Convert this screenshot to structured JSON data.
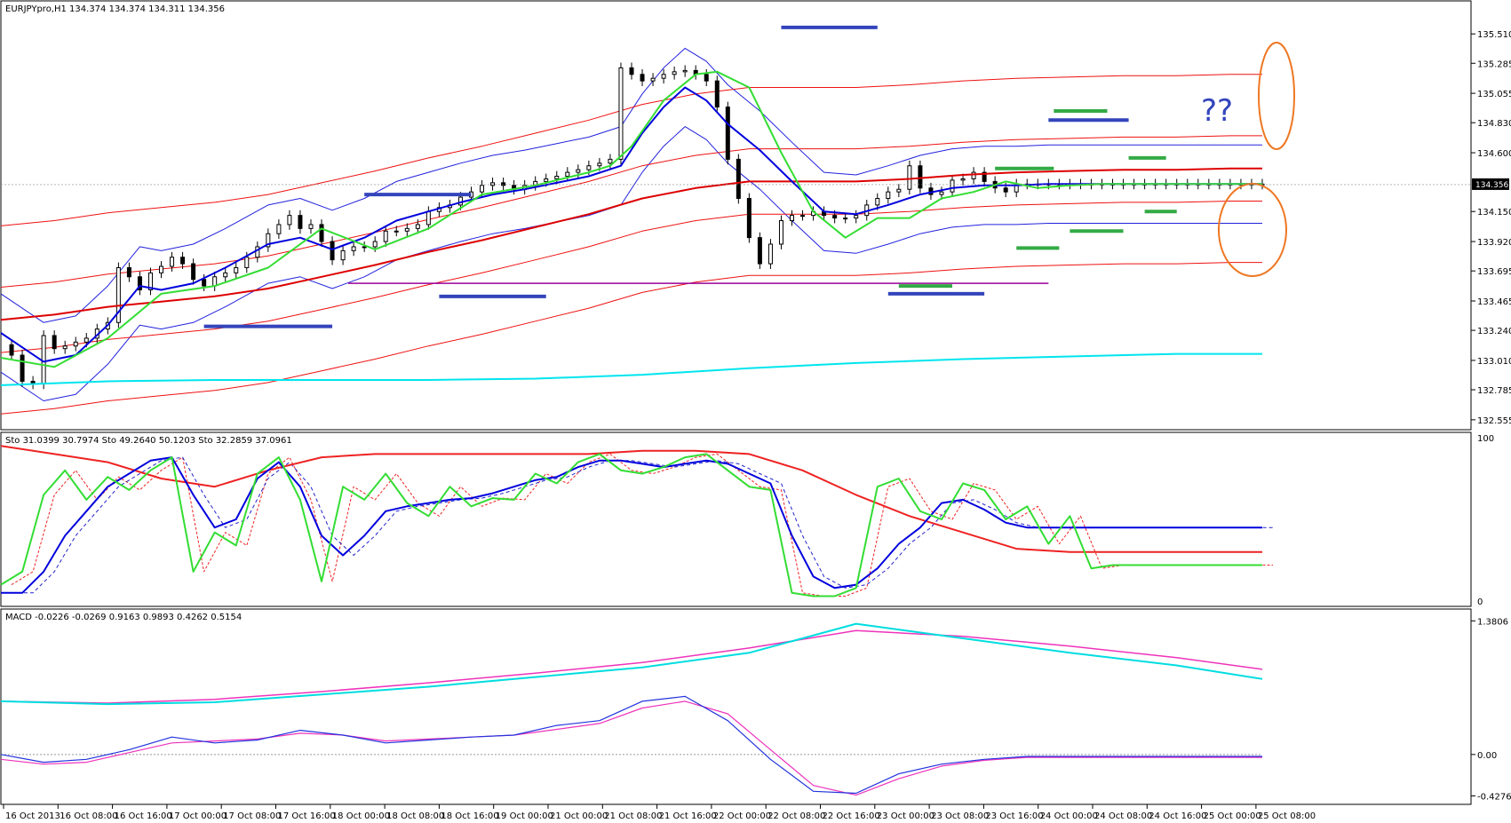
{
  "main": {
    "title": "EURJPYpro,H1  134.374 134.374 134.311 134.356",
    "price_ticks": [
      "135.510",
      "135.285",
      "135.055",
      "134.830",
      "134.600",
      "134.150",
      "133.920",
      "133.695",
      "133.465",
      "133.240",
      "133.010",
      "132.785",
      "132.555"
    ],
    "price_range": [
      132.52,
      135.62
    ],
    "current_price": "134.356",
    "question_marks": "??"
  },
  "stochastic": {
    "title": "Sto 31.0399 30.7974   Sto 49.2640 50.1203   Sto 32.2859 37.0961",
    "ticks": [
      "100",
      "0"
    ],
    "range": [
      0,
      100
    ]
  },
  "macd": {
    "title": "MACD -0.0226 -0.0269 0.9163 0.9893 0.4262 0.5154",
    "ticks": [
      "1.3806",
      "0.00",
      "-0.4276"
    ],
    "range": [
      -0.46,
      1.42
    ]
  },
  "x_ticks": [
    "16 Oct 2013",
    "16 Oct 08:00",
    "16 Oct 16:00",
    "17 Oct 00:00",
    "17 Oct 08:00",
    "17 Oct 16:00",
    "18 Oct 00:00",
    "18 Oct 08:00",
    "18 Oct 16:00",
    "19 Oct 00:00",
    "21 Oct 00:00",
    "21 Oct 08:00",
    "21 Oct 16:00",
    "22 Oct 00:00",
    "22 Oct 08:00",
    "22 Oct 16:00",
    "23 Oct 00:00",
    "23 Oct 08:00",
    "23 Oct 16:00",
    "24 Oct 00:00",
    "24 Oct 08:00",
    "24 Oct 16:00",
    "25 Oct 00:00",
    "25 Oct 08:00"
  ],
  "colors": {
    "ma_fast": "#33dd33",
    "ma_mid": "#0000dd",
    "ma_slow": "#dd0000",
    "ma_long": "#00e5ee",
    "bands_blue": "#2222dd",
    "bands_red": "#ee1111",
    "support": "#990099",
    "annotation_blue": "#3344bb",
    "annotation_green": "#33aa44",
    "annotation_orange": "#ee7722",
    "macd_cyan": "#00dde0",
    "macd_pink": "#ee33bb"
  },
  "chart_data": [
    {
      "type": "line",
      "panel": "price",
      "series": [
        {
          "key": "close",
          "x": [
            0,
            2,
            4,
            6,
            8,
            10,
            12,
            14,
            16,
            18,
            20,
            22,
            24,
            26,
            28,
            30,
            32,
            34,
            36,
            38,
            40,
            42,
            44,
            46,
            48,
            50,
            52,
            54,
            56,
            58,
            60,
            62,
            64,
            66,
            68,
            70,
            72,
            74,
            76,
            78,
            80,
            82,
            84,
            86,
            88,
            90,
            92,
            94,
            96,
            98,
            100,
            102,
            104,
            106,
            108,
            110,
            112,
            114,
            116,
            118,
            120,
            122,
            124,
            126,
            128,
            130,
            132,
            134,
            136,
            138,
            140,
            142,
            144,
            146,
            148,
            150,
            152,
            154,
            156,
            158,
            160,
            162,
            164,
            166,
            168,
            170,
            172,
            174,
            176,
            178,
            180,
            182,
            184,
            186,
            188,
            190,
            192,
            194,
            196,
            198,
            200,
            202,
            204,
            206,
            208,
            210,
            212,
            214,
            216,
            218,
            220,
            222,
            224,
            226,
            228,
            230,
            232,
            234,
            236
          ],
          "y": [
            133.13,
            133.05,
            132.85,
            132.83,
            133.2,
            133.1,
            133.12,
            133.15,
            133.18,
            133.25,
            133.3,
            133.72,
            133.65,
            133.55,
            133.68,
            133.73,
            133.8,
            133.75,
            133.63,
            133.58,
            133.65,
            133.68,
            133.72,
            133.8,
            133.88,
            133.98,
            134.05,
            134.12,
            134.02,
            134.05,
            133.92,
            133.78,
            133.85,
            133.88,
            133.88,
            133.92,
            134.0,
            134.0,
            134.02,
            134.05,
            134.15,
            134.18,
            134.2,
            134.26,
            134.3,
            134.35,
            134.37,
            134.35,
            134.32,
            134.35,
            134.38,
            134.4,
            134.42,
            134.45,
            134.47,
            134.5,
            134.52,
            134.55,
            135.25,
            135.2,
            135.15,
            135.17,
            135.2,
            135.22,
            135.23,
            135.2,
            135.15,
            134.95,
            134.55,
            134.25,
            133.95,
            133.75,
            133.9,
            134.08,
            134.12,
            134.12,
            134.15,
            134.12,
            134.1,
            134.1,
            134.12,
            134.2,
            134.25,
            134.3,
            134.32,
            134.5,
            134.33,
            134.28,
            134.3,
            134.39,
            134.4,
            134.45,
            134.38,
            134.33,
            134.3,
            134.36,
            134.36,
            134.36,
            134.36,
            134.36,
            134.36,
            134.36,
            134.36,
            134.36,
            134.36,
            134.36,
            134.36,
            134.36,
            134.36,
            134.36,
            134.36,
            134.36,
            134.36,
            134.36,
            134.36,
            134.36,
            134.36,
            134.36,
            134.36
          ]
        },
        {
          "key": "ma_fast",
          "x": [
            0,
            10,
            20,
            30,
            40,
            50,
            60,
            70,
            80,
            90,
            100,
            110,
            114,
            118,
            124,
            130,
            134,
            140,
            146,
            152,
            158,
            164,
            170,
            176,
            182,
            188,
            194,
            200,
            206,
            212,
            218,
            224,
            230,
            236
          ],
          "y": [
            133.03,
            132.96,
            133.18,
            133.52,
            133.58,
            133.72,
            134.02,
            133.86,
            134.02,
            134.28,
            134.35,
            134.45,
            134.5,
            134.65,
            135.0,
            135.2,
            135.22,
            135.1,
            134.6,
            134.15,
            133.95,
            134.1,
            134.1,
            134.25,
            134.3,
            134.38,
            134.33,
            134.35,
            134.36,
            134.36,
            134.36,
            134.36,
            134.36,
            134.36
          ]
        },
        {
          "key": "ma_mid",
          "x": [
            0,
            8,
            14,
            20,
            26,
            30,
            36,
            42,
            50,
            56,
            62,
            68,
            74,
            80,
            86,
            92,
            98,
            104,
            110,
            116,
            120,
            124,
            128,
            132,
            136,
            142,
            148,
            154,
            160,
            166,
            172,
            178,
            184,
            190,
            196,
            202,
            208,
            214,
            220,
            226,
            232,
            236
          ],
          "y": [
            133.22,
            133.0,
            133.05,
            133.28,
            133.58,
            133.55,
            133.6,
            133.72,
            133.9,
            133.95,
            133.86,
            133.95,
            134.08,
            134.15,
            134.22,
            134.28,
            134.32,
            134.37,
            134.42,
            134.5,
            134.75,
            134.95,
            135.1,
            135.0,
            134.82,
            134.62,
            134.38,
            134.15,
            134.13,
            134.2,
            134.28,
            134.33,
            134.35,
            134.35,
            134.36,
            134.36,
            134.36,
            134.36,
            134.36,
            134.36,
            134.36,
            134.36
          ]
        },
        {
          "key": "ma_slow",
          "x": [
            0,
            10,
            20,
            30,
            40,
            50,
            60,
            70,
            80,
            90,
            100,
            110,
            120,
            130,
            140,
            150,
            160,
            170,
            180,
            190,
            200,
            210,
            220,
            230,
            236
          ],
          "y": [
            133.32,
            133.36,
            133.42,
            133.46,
            133.5,
            133.56,
            133.65,
            133.74,
            133.84,
            133.93,
            134.03,
            134.13,
            134.25,
            134.33,
            134.38,
            134.38,
            134.38,
            134.4,
            134.43,
            134.45,
            134.46,
            134.47,
            134.47,
            134.48,
            134.48
          ]
        },
        {
          "key": "ma_long",
          "x": [
            0,
            20,
            40,
            60,
            80,
            100,
            120,
            140,
            160,
            180,
            200,
            220,
            236
          ],
          "y": [
            132.82,
            132.85,
            132.86,
            132.86,
            132.86,
            132.87,
            132.9,
            132.95,
            132.99,
            133.02,
            133.04,
            133.06,
            133.06
          ]
        }
      ]
    },
    {
      "type": "line",
      "panel": "stochastic",
      "series": [
        {
          "key": "sto_fast",
          "x": [
            0,
            4,
            8,
            12,
            16,
            20,
            24,
            28,
            32,
            36,
            40,
            44,
            48,
            52,
            56,
            60,
            64,
            68,
            72,
            76,
            80,
            84,
            88,
            92,
            96,
            100,
            104,
            108,
            112,
            116,
            120,
            124,
            128,
            132,
            136,
            140,
            144,
            148,
            152,
            156,
            160,
            164,
            168,
            172,
            176,
            180,
            184,
            188,
            192,
            196,
            200,
            204,
            208,
            212,
            216,
            220,
            224,
            228,
            232,
            236
          ],
          "y": [
            10,
            18,
            65,
            80,
            62,
            76,
            68,
            80,
            88,
            18,
            42,
            34,
            78,
            88,
            62,
            12,
            70,
            62,
            78,
            60,
            52,
            70,
            58,
            63,
            62,
            78,
            72,
            85,
            90,
            80,
            78,
            82,
            88,
            90,
            80,
            70,
            68,
            5,
            3,
            3,
            8,
            70,
            75,
            55,
            50,
            72,
            68,
            50,
            58,
            35,
            52,
            20,
            22,
            22,
            22,
            22,
            22,
            22,
            22,
            22
          ]
        },
        {
          "key": "sto_mid",
          "x": [
            0,
            4,
            8,
            12,
            16,
            20,
            24,
            28,
            32,
            36,
            40,
            44,
            48,
            52,
            56,
            60,
            64,
            68,
            72,
            76,
            80,
            84,
            88,
            92,
            96,
            100,
            104,
            108,
            112,
            116,
            120,
            124,
            128,
            132,
            136,
            140,
            144,
            148,
            152,
            156,
            160,
            164,
            168,
            172,
            176,
            180,
            184,
            188,
            192,
            196,
            200,
            204,
            208,
            212,
            216,
            220,
            224,
            228,
            232,
            236
          ],
          "y": [
            5,
            5,
            18,
            40,
            55,
            70,
            78,
            86,
            88,
            65,
            45,
            50,
            75,
            85,
            70,
            40,
            28,
            40,
            55,
            58,
            60,
            62,
            63,
            66,
            70,
            74,
            76,
            82,
            86,
            86,
            84,
            82,
            84,
            86,
            84,
            78,
            72,
            40,
            15,
            8,
            10,
            20,
            35,
            45,
            60,
            62,
            56,
            48,
            45,
            45,
            45,
            45,
            45,
            45,
            45,
            45,
            45,
            45,
            45,
            45
          ]
        },
        {
          "key": "sto_slow",
          "x": [
            0,
            10,
            20,
            30,
            40,
            50,
            60,
            70,
            80,
            90,
            100,
            110,
            120,
            130,
            140,
            150,
            160,
            170,
            180,
            190,
            200,
            210,
            220,
            230,
            236
          ],
          "y": [
            95,
            90,
            85,
            75,
            70,
            80,
            88,
            90,
            90,
            90,
            90,
            90,
            92,
            92,
            90,
            80,
            65,
            52,
            42,
            32,
            30,
            30,
            30,
            30,
            30
          ]
        }
      ]
    },
    {
      "type": "line",
      "panel": "macd",
      "series": [
        {
          "key": "macd_signal_cyan",
          "x": [
            0,
            20,
            40,
            60,
            80,
            100,
            120,
            140,
            160,
            180,
            200,
            220,
            236
          ],
          "y": [
            0.55,
            0.52,
            0.54,
            0.62,
            0.7,
            0.8,
            0.9,
            1.05,
            1.35,
            1.2,
            1.05,
            0.92,
            0.78
          ]
        },
        {
          "key": "macd_pink",
          "x": [
            0,
            20,
            40,
            60,
            80,
            100,
            120,
            140,
            160,
            180,
            200,
            220,
            236
          ],
          "y": [
            0.55,
            0.53,
            0.57,
            0.65,
            0.74,
            0.84,
            0.95,
            1.1,
            1.28,
            1.22,
            1.12,
            1.0,
            0.88
          ]
        },
        {
          "key": "macd_histogram_blue",
          "x": [
            0,
            8,
            16,
            24,
            32,
            40,
            48,
            56,
            64,
            72,
            80,
            88,
            96,
            104,
            112,
            120,
            128,
            136,
            144,
            152,
            160,
            168,
            176,
            184,
            192,
            200,
            208,
            216,
            224,
            232,
            236
          ],
          "y": [
            0.0,
            -0.08,
            -0.05,
            0.05,
            0.18,
            0.12,
            0.15,
            0.25,
            0.2,
            0.12,
            0.15,
            0.18,
            0.2,
            0.3,
            0.35,
            0.55,
            0.6,
            0.35,
            -0.05,
            -0.38,
            -0.4,
            -0.2,
            -0.1,
            -0.05,
            -0.02,
            -0.02,
            -0.02,
            -0.02,
            -0.02,
            -0.02,
            -0.02
          ]
        },
        {
          "key": "macd_histogram_pink",
          "x": [
            0,
            8,
            16,
            24,
            32,
            40,
            48,
            56,
            64,
            72,
            80,
            88,
            96,
            104,
            112,
            120,
            128,
            136,
            144,
            152,
            160,
            168,
            176,
            184,
            192,
            200,
            208,
            216,
            224,
            232,
            236
          ],
          "y": [
            -0.05,
            -0.1,
            -0.08,
            0.02,
            0.12,
            0.14,
            0.16,
            0.22,
            0.2,
            0.14,
            0.16,
            0.18,
            0.2,
            0.26,
            0.32,
            0.48,
            0.55,
            0.42,
            0.05,
            -0.32,
            -0.42,
            -0.25,
            -0.12,
            -0.06,
            -0.03,
            -0.03,
            -0.03,
            -0.03,
            -0.03,
            -0.03,
            -0.03
          ]
        }
      ]
    }
  ]
}
